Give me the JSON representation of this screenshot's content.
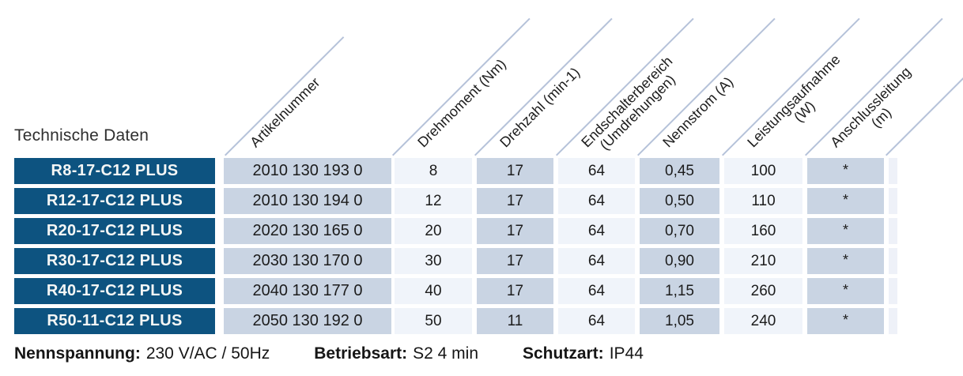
{
  "title": "Technische Daten",
  "table": {
    "header": {
      "columns": [
        {
          "line1": "Artikelnummer"
        },
        {
          "line1": "Drehmoment (Nm)"
        },
        {
          "line1": "Drehzahl (min-1)"
        },
        {
          "line1": "Endschalterbereich",
          "line2": "(Umdrehungen)"
        },
        {
          "line1": "Nennstrom (A)"
        },
        {
          "line1": "Leistungsaufnahme",
          "line2": "(W)"
        },
        {
          "line1": "Anschlussleitung",
          "line2": "(m)"
        }
      ]
    },
    "rows": [
      {
        "model": "R8-17-C12 PLUS",
        "cells": [
          "2010 130 193 0",
          "8",
          "17",
          "64",
          "0,45",
          "100",
          "*"
        ]
      },
      {
        "model": "R12-17-C12 PLUS",
        "cells": [
          "2010 130 194 0",
          "12",
          "17",
          "64",
          "0,50",
          "110",
          "*"
        ]
      },
      {
        "model": "R20-17-C12 PLUS",
        "cells": [
          "2020 130 165 0",
          "20",
          "17",
          "64",
          "0,70",
          "160",
          "*"
        ]
      },
      {
        "model": "R30-17-C12 PLUS",
        "cells": [
          "2030 130 170 0",
          "30",
          "17",
          "64",
          "0,90",
          "210",
          "*"
        ]
      },
      {
        "model": "R40-17-C12 PLUS",
        "cells": [
          "2040 130 177 0",
          "40",
          "17",
          "64",
          "1,15",
          "260",
          "*"
        ]
      },
      {
        "model": "R50-11-C12 PLUS",
        "cells": [
          "2050 130 192 0",
          "50",
          "11",
          "64",
          "1,05",
          "240",
          "*"
        ]
      }
    ]
  },
  "footer": {
    "items": [
      {
        "label": "Nennspannung:",
        "value": "230 V/AC / 50Hz"
      },
      {
        "label": "Betriebsart:",
        "value": "S2 4 min"
      },
      {
        "label": "Schutzart:",
        "value": "IP44"
      }
    ]
  },
  "colors": {
    "label_bg": "#0d5380",
    "cell_dark": "#c9d4e3",
    "cell_light": "#f0f4fa",
    "strip": "#eef1f8",
    "diagonal_line": "#b5c2d9"
  }
}
